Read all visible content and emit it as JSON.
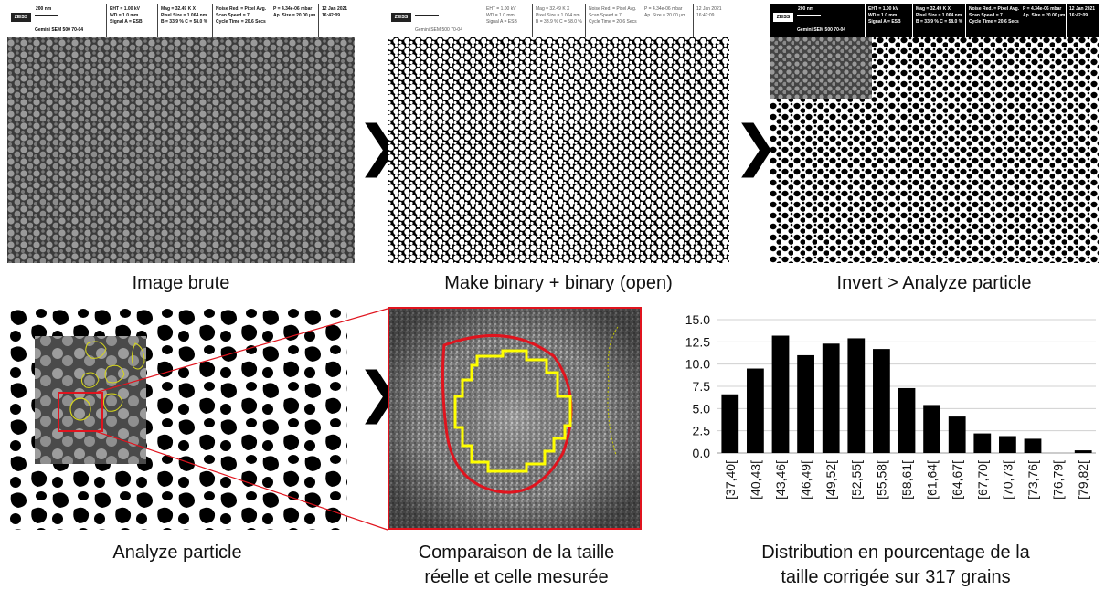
{
  "panels": {
    "raw": {
      "caption": "Image brute",
      "header": {
        "logo": "ZEISS",
        "scale": "200 nm",
        "device": "Gemini SEM 500 70-04",
        "col2": [
          "EHT = 1.00 kV",
          "WD = 1.0 mm",
          "Signal A = ESB"
        ],
        "col3": [
          "Mag = 32.49 K X",
          "Pixel Size = 1.064 nm",
          "B = 33.9 %  C = 58.0 %"
        ],
        "col4": [
          "Noise Red. = Pixel Avg.",
          "Scan Speed = 7",
          "Cycle Time = 20.6 Secs"
        ],
        "col5": [
          "",
          "P = 4.34e-06 mbar",
          "Ap. Size = 20.00 µm"
        ],
        "col6": [
          "12 Jan 2021",
          "16:42:09"
        ]
      }
    },
    "binary": {
      "caption": "Make binary + binary (open)"
    },
    "inverted": {
      "caption": "Invert > Analyze particle"
    },
    "analyze": {
      "caption": "Analyze particle"
    },
    "comparison": {
      "caption_line1": "Comparaison de la taille",
      "caption_line2": "réelle et celle mesurée"
    },
    "distribution": {
      "caption_line1": "Distribution en pourcentage de la",
      "caption_line2": "taille corrigée sur 317 grains"
    }
  },
  "arrows": {
    "glyph": "❯"
  },
  "colors": {
    "outline_red": "#e0141e",
    "outline_yellow": "#ffff00",
    "bar": "#000000"
  },
  "chart_data": {
    "type": "bar",
    "categories": [
      "[37,40[",
      "[40,43[",
      "[43,46[",
      "[46,49[",
      "[49,52[",
      "[52,55[",
      "[55,58[",
      "[58,61[",
      "[61,64[",
      "[64,67[",
      "[67,70[",
      "[70,73[",
      "[73,76[",
      "[76,79[",
      "[79,82["
    ],
    "values": [
      6.6,
      9.5,
      13.2,
      11.0,
      12.3,
      12.9,
      11.7,
      7.3,
      5.4,
      4.1,
      2.2,
      1.9,
      1.6,
      0.0,
      0.3
    ],
    "ylim": [
      0,
      15
    ],
    "yticks": [
      "0.0",
      "2.5",
      "5.0",
      "7.5",
      "10.0",
      "12.5",
      "15.0"
    ],
    "grid": true
  }
}
